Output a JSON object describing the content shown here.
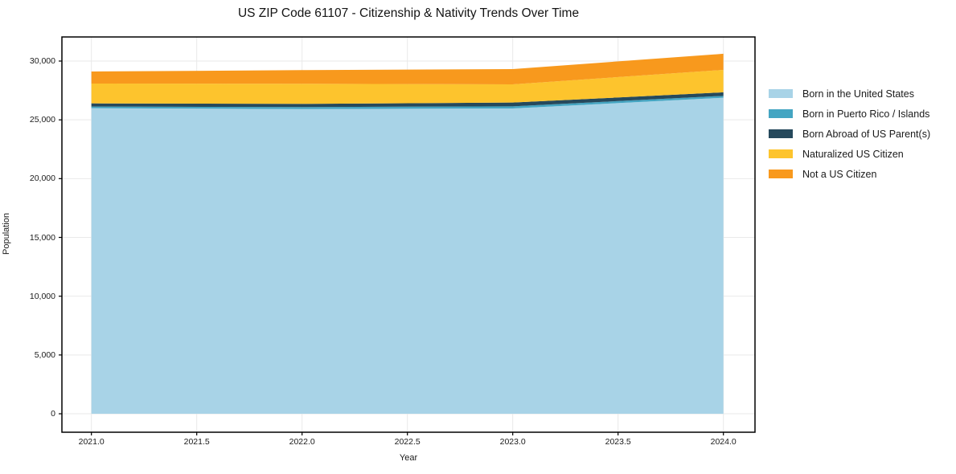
{
  "chart_data": {
    "type": "area",
    "stacking": "stacked",
    "title": "US ZIP Code 61107 - Citizenship & Nativity Trends Over Time",
    "xlabel": "Year",
    "ylabel": "Population",
    "x": [
      2021,
      2022,
      2023,
      2024
    ],
    "x_ticks": [
      2021.0,
      2021.5,
      2022.0,
      2022.5,
      2023.0,
      2023.5,
      2024.0
    ],
    "x_ticklabels": [
      "2021.0",
      "2021.5",
      "2022.0",
      "2022.5",
      "2023.0",
      "2023.5",
      "2024.0"
    ],
    "y_ticks": [
      0,
      5000,
      10000,
      15000,
      20000,
      25000,
      30000
    ],
    "y_ticklabels": [
      "0",
      "5,000",
      "10,000",
      "15,000",
      "20,000",
      "25,000",
      "30,000"
    ],
    "xlim": [
      2020.86,
      2024.15
    ],
    "ylim": [
      -1570,
      32050
    ],
    "grid": true,
    "grid_color": "#e9e9e9",
    "legend_position": "right-outside",
    "series": [
      {
        "name": "Born in the United States",
        "color": "#a8d3e7",
        "values": [
          25990,
          25920,
          25970,
          26880
        ]
      },
      {
        "name": "Born in Puerto Rico / Islands",
        "color": "#44a5c2",
        "values": [
          140,
          170,
          180,
          160
        ]
      },
      {
        "name": "Born Abroad of US Parent(s)",
        "color": "#26495c",
        "values": [
          270,
          270,
          320,
          300
        ]
      },
      {
        "name": "Naturalized US Citizen",
        "color": "#fdc42d",
        "values": [
          1690,
          1710,
          1550,
          1910
        ]
      },
      {
        "name": "Not a US Citizen",
        "color": "#f8991d",
        "values": [
          1020,
          1160,
          1300,
          1370
        ]
      }
    ],
    "totals": [
      29110,
      29230,
      29320,
      30620
    ]
  }
}
